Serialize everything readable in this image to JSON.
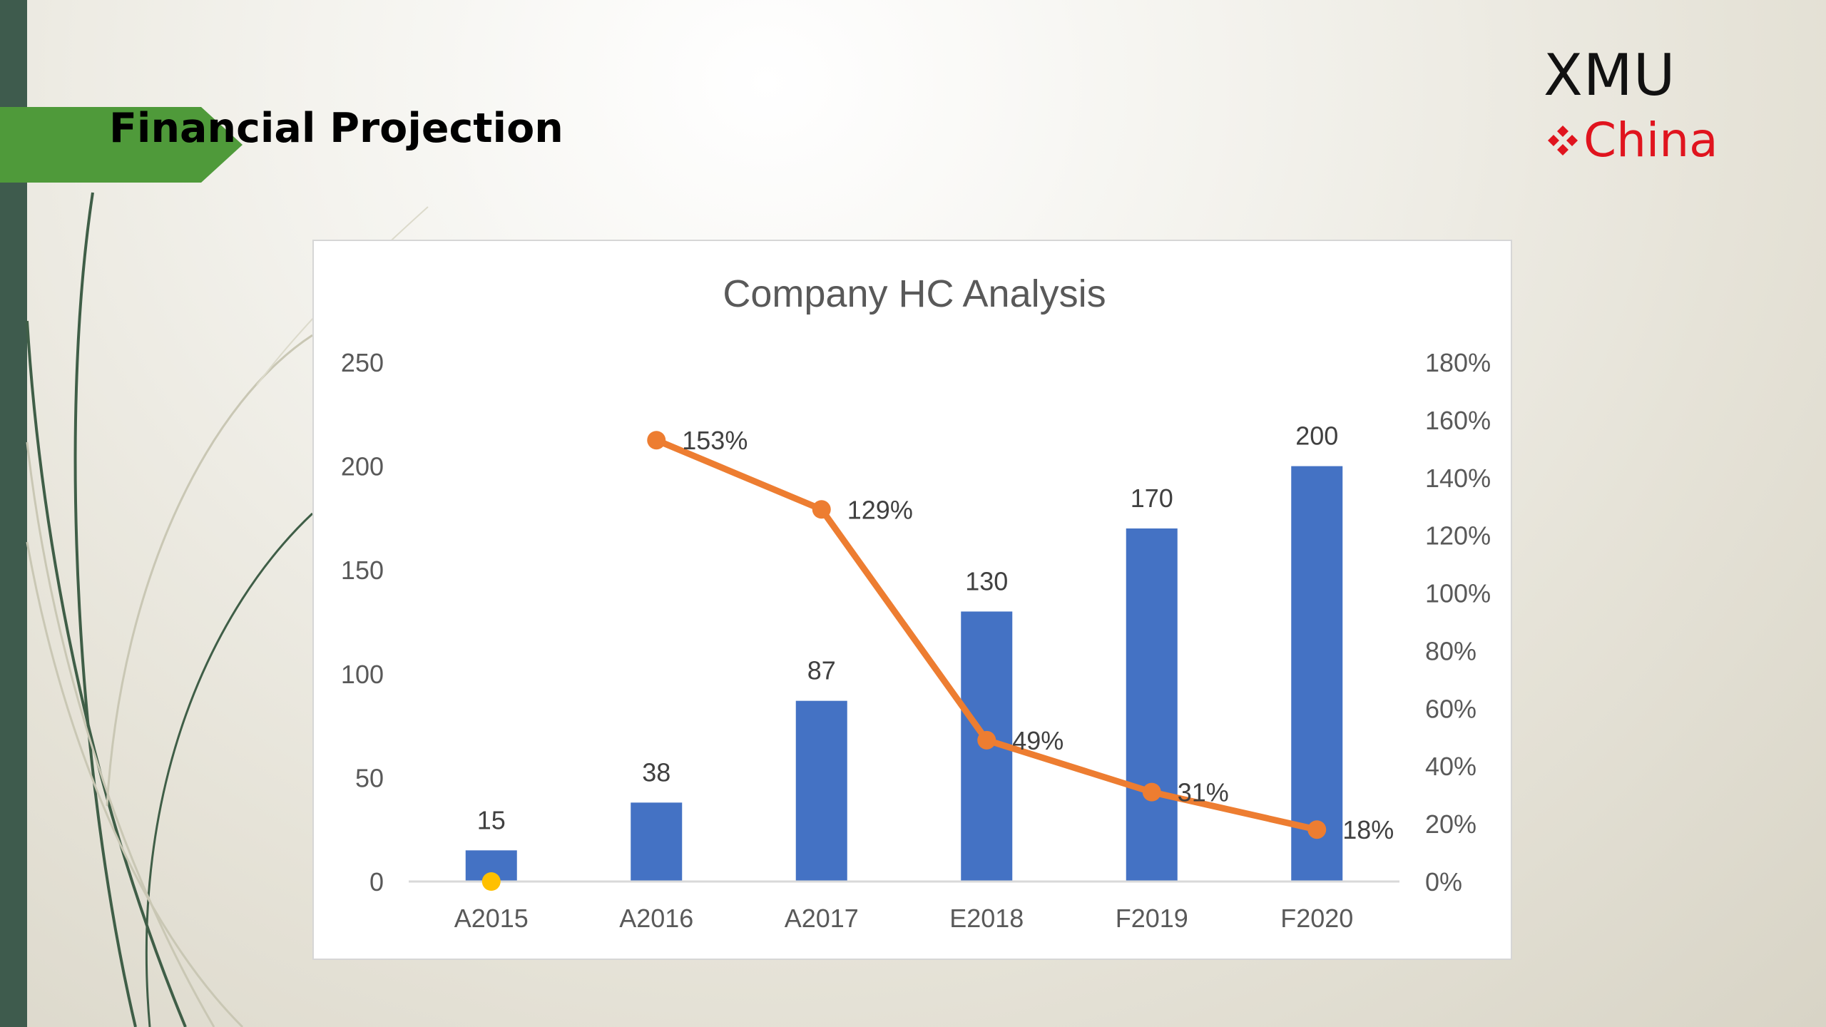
{
  "slide": {
    "title": "Financial Projection",
    "logo_line1": "XMU",
    "logo_line2": "China",
    "colors": {
      "banner": "#4f9a3a",
      "left_bar": "#3e5b4d",
      "logo_red": "#e0141e"
    }
  },
  "chart_data": {
    "type": "bar",
    "title": "Company HC Analysis",
    "categories": [
      "A2015",
      "A2016",
      "A2017",
      "E2018",
      "F2019",
      "F2020"
    ],
    "series": [
      {
        "type": "bar",
        "axis": "left",
        "color": "#4472c4",
        "values": [
          15,
          38,
          87,
          130,
          170,
          200
        ],
        "labels": [
          "15",
          "38",
          "87",
          "130",
          "170",
          "200"
        ]
      },
      {
        "type": "line",
        "axis": "right",
        "color": "#ed7d31",
        "values": [
          null,
          1.53,
          1.29,
          0.49,
          0.31,
          0.18
        ],
        "labels": [
          "",
          "153%",
          "129%",
          "49%",
          "31%",
          "18%"
        ],
        "first_point_color": "#ffc000",
        "first_point_value": 0
      }
    ],
    "y_left": {
      "min": 0,
      "max": 250,
      "ticks": [
        "0",
        "50",
        "100",
        "150",
        "200",
        "250"
      ]
    },
    "y_right": {
      "min": 0,
      "max": 1.8,
      "ticks": [
        "0%",
        "20%",
        "40%",
        "60%",
        "80%",
        "100%",
        "120%",
        "140%",
        "160%",
        "180%"
      ]
    },
    "grid": false,
    "legend": "none"
  }
}
